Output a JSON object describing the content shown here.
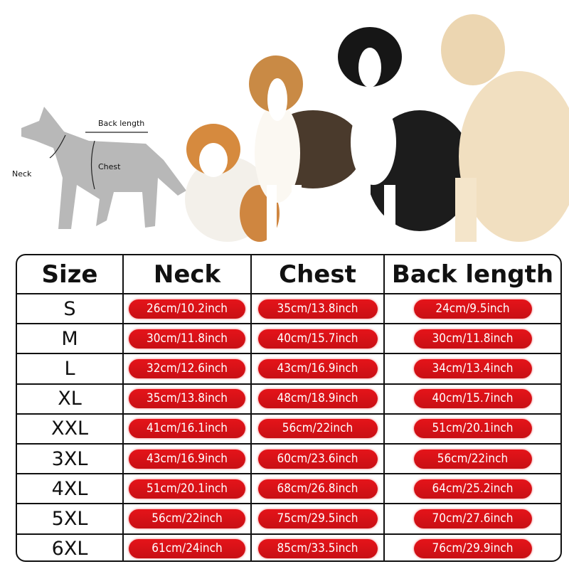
{
  "diagram": {
    "back_length_label": "Back length",
    "chest_label": "Chest",
    "neck_label": "Neck"
  },
  "table": {
    "headers": [
      "Size",
      "Neck",
      "Chest",
      "Back length"
    ],
    "rows": [
      {
        "size": "S",
        "neck": "26cm/10.2inch",
        "chest": "35cm/13.8inch",
        "back": "24cm/9.5inch"
      },
      {
        "size": "M",
        "neck": "30cm/11.8inch",
        "chest": "40cm/15.7inch",
        "back": "30cm/11.8inch"
      },
      {
        "size": "L",
        "neck": "32cm/12.6inch",
        "chest": "43cm/16.9inch",
        "back": "34cm/13.4inch"
      },
      {
        "size": "XL",
        "neck": "35cm/13.8inch",
        "chest": "48cm/18.9inch",
        "back": "40cm/15.7inch"
      },
      {
        "size": "XXL",
        "neck": "41cm/16.1inch",
        "chest": "56cm/22inch",
        "back": "51cm/20.1inch"
      },
      {
        "size": "3XL",
        "neck": "43cm/16.9inch",
        "chest": "60cm/23.6inch",
        "back": "56cm/22inch"
      },
      {
        "size": "4XL",
        "neck": "51cm/20.1inch",
        "chest": "68cm/26.8inch",
        "back": "64cm/25.2inch"
      },
      {
        "size": "5XL",
        "neck": "56cm/22inch",
        "chest": "75cm/29.5inch",
        "back": "70cm/27.6inch"
      },
      {
        "size": "6XL",
        "neck": "61cm/24inch",
        "chest": "85cm/33.5inch",
        "back": "76cm/29.9inch"
      }
    ]
  },
  "colors": {
    "pill": "#d8121a",
    "border": "#111111",
    "silhouette": "#b5b5b5"
  }
}
